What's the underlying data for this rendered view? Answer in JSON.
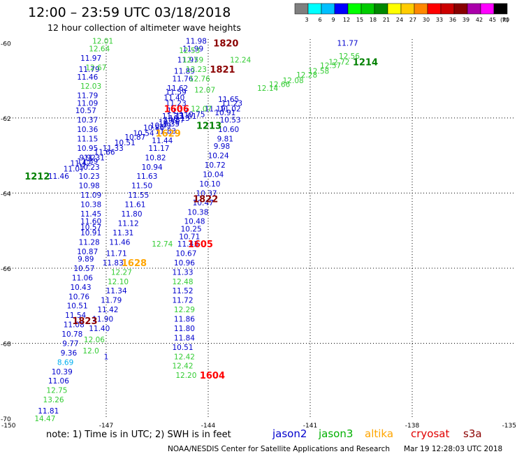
{
  "title": "12:00  – 23:59 UTC 03/18/2018",
  "subtitle": "12 hour collection of altimeter wave heights",
  "footer_note": "note: 1) Time is in UTC; 2) SWH is in feet",
  "credit": "NOAA/NESDIS Center for Satellite Applications and Research",
  "timestamp": "Mar 19 12:28:03 UTC 2018",
  "colorbar": {
    "ticks": [
      "3",
      "6",
      "9",
      "12",
      "15",
      "18",
      "21",
      "24",
      "27",
      "30",
      "33",
      "36",
      "39",
      "42",
      "45",
      "70"
    ],
    "unit": "(ft)",
    "colors": [
      "#7f7f7f",
      "#00ffff",
      "#00bfff",
      "#0000ff",
      "#00ff00",
      "#00cc00",
      "#008800",
      "#ffff00",
      "#ffcc00",
      "#ff8800",
      "#ff0000",
      "#cc0000",
      "#880000",
      "#aa00aa",
      "#ff00ff",
      "#000000"
    ]
  },
  "satellites": [
    {
      "name": "jason2",
      "color": "#0000cd"
    },
    {
      "name": "jason3",
      "color": "#00b000"
    },
    {
      "name": "altika",
      "color": "#ffa500"
    },
    {
      "name": "cryosat",
      "color": "#e00000"
    },
    {
      "name": "s3a",
      "color": "#8b0000"
    }
  ],
  "chart_data": {
    "type": "scatter",
    "xlim": [
      -150,
      -135
    ],
    "ylim": [
      -70,
      -59.9
    ],
    "x_ticks": [
      "-150",
      "-147",
      "-144",
      "-141",
      "-138",
      "-135"
    ],
    "y_ticks": [
      "-60",
      "-62",
      "-64",
      "-66",
      "-68",
      "-70"
    ],
    "grid": true,
    "series": [
      {
        "name": "jason2",
        "color": "#0000cd",
        "points": [
          [
            -144.35,
            -59.95,
            "11.98"
          ],
          [
            -144.45,
            -60.15,
            "11.99"
          ],
          [
            -144.6,
            -60.45,
            "11.97"
          ],
          [
            -144.7,
            -60.75,
            "11.89"
          ],
          [
            -144.75,
            -60.95,
            "11.76"
          ],
          [
            -144.9,
            -61.2,
            "11.62"
          ],
          [
            -144.95,
            -61.3,
            "11.59"
          ],
          [
            -145.0,
            -61.45,
            "11.40"
          ],
          [
            -144.95,
            -61.6,
            "11.23"
          ],
          [
            -144.9,
            -61.8,
            "11.19"
          ],
          [
            -145.05,
            -61.95,
            "11.23"
          ],
          [
            -145.15,
            -62.15,
            "11.35"
          ],
          [
            -145.25,
            -62.35,
            "11.83"
          ],
          [
            -145.35,
            -62.6,
            "11.44"
          ],
          [
            -145.45,
            -62.8,
            "11.17"
          ],
          [
            -145.55,
            -63.05,
            "10.82"
          ],
          [
            -145.65,
            -63.3,
            "10.94"
          ],
          [
            -145.8,
            -63.55,
            "11.63"
          ],
          [
            -145.95,
            -63.8,
            "11.50"
          ],
          [
            -146.05,
            -64.05,
            "11.55"
          ],
          [
            -146.15,
            -64.3,
            "11.61"
          ],
          [
            -146.25,
            -64.55,
            "11.80"
          ],
          [
            -146.35,
            -64.8,
            "11.12"
          ],
          [
            -146.5,
            -65.05,
            "11.31"
          ],
          [
            -146.6,
            -65.3,
            "11.46"
          ],
          [
            -146.7,
            -65.6,
            "11.71"
          ],
          [
            -146.8,
            -65.85,
            "11.83"
          ],
          [
            -146.7,
            -66.6,
            "11.34"
          ],
          [
            -146.85,
            -66.85,
            "11.79"
          ],
          [
            -146.95,
            -67.1,
            "11.42"
          ],
          [
            -147.1,
            -67.35,
            "11.90"
          ],
          [
            -147.2,
            -67.6,
            "11.40"
          ],
          [
            -147.0,
            -68.35,
            "1"
          ],
          [
            -147.45,
            -60.4,
            "11.97"
          ],
          [
            -147.5,
            -60.7,
            "11.79"
          ],
          [
            -147.55,
            -60.9,
            "11.46"
          ],
          [
            -147.55,
            -61.4,
            "11.79"
          ],
          [
            -147.55,
            -61.6,
            "11.09"
          ],
          [
            -147.6,
            -61.8,
            "10.57"
          ],
          [
            -147.55,
            -62.05,
            "10.37"
          ],
          [
            -147.55,
            -62.3,
            "10.36"
          ],
          [
            -147.55,
            -62.55,
            "11.15"
          ],
          [
            -147.55,
            -62.8,
            "10.95"
          ],
          [
            -147.55,
            -63.05,
            "9.92"
          ],
          [
            -147.5,
            -63.3,
            "10.23"
          ],
          [
            -147.5,
            -63.55,
            "10.23"
          ],
          [
            -147.5,
            -63.8,
            "10.98"
          ],
          [
            -147.45,
            -64.05,
            "11.09"
          ],
          [
            -147.45,
            -64.3,
            "10.38"
          ],
          [
            -147.45,
            -64.55,
            "11.45"
          ],
          [
            -147.45,
            -64.75,
            "11.60"
          ],
          [
            -147.45,
            -64.9,
            "10.57"
          ],
          [
            -147.45,
            -65.05,
            "10.91"
          ],
          [
            -147.5,
            -65.3,
            "11.28"
          ],
          [
            -147.55,
            -65.55,
            "10.87"
          ],
          [
            -147.6,
            -65.75,
            "9.89"
          ],
          [
            -147.65,
            -66.0,
            "10.57"
          ],
          [
            -147.7,
            -66.25,
            "11.06"
          ],
          [
            -147.75,
            -66.5,
            "10.43"
          ],
          [
            -147.8,
            -66.75,
            "10.76"
          ],
          [
            -147.85,
            -67.0,
            "10.51"
          ],
          [
            -147.9,
            -67.25,
            "11.54"
          ],
          [
            -147.95,
            -67.5,
            "11.08"
          ],
          [
            -148.0,
            -67.75,
            "10.78"
          ],
          [
            -148.05,
            -68.0,
            "9.77"
          ],
          [
            -148.1,
            -68.25,
            "9.36"
          ],
          [
            -148.3,
            -68.75,
            "10.39"
          ],
          [
            -148.4,
            -69.0,
            "11.06"
          ],
          [
            -148.7,
            -69.8,
            "11.81"
          ],
          [
            -148.4,
            -63.55,
            "11.46"
          ],
          [
            -147.95,
            -63.35,
            "11.07"
          ],
          [
            -147.75,
            -63.2,
            "11.42"
          ],
          [
            -147.55,
            -63.15,
            "11.39"
          ],
          [
            -147.35,
            -63.05,
            "11.31"
          ],
          [
            -147.05,
            -62.9,
            "11.66"
          ],
          [
            -146.8,
            -62.8,
            "11.33"
          ],
          [
            -146.45,
            -62.65,
            "10.51"
          ],
          [
            -146.15,
            -62.5,
            "10.87"
          ],
          [
            -145.9,
            -62.4,
            "10.54"
          ],
          [
            -145.6,
            -62.25,
            "10.86"
          ],
          [
            -145.4,
            -62.2,
            "10.49"
          ],
          [
            -145.15,
            -62.1,
            "10.76"
          ],
          [
            -145.0,
            -62.05,
            "10.87"
          ],
          [
            -144.85,
            -62.0,
            "10.13"
          ],
          [
            -144.65,
            -61.95,
            "11.01"
          ],
          [
            -144.4,
            -61.9,
            "10.75"
          ],
          [
            -143.8,
            -61.75,
            "11.19"
          ],
          [
            -143.5,
            -61.85,
            "10.91"
          ],
          [
            -143.35,
            -61.75,
            "11.02"
          ],
          [
            -143.3,
            -61.6,
            "11.23"
          ],
          [
            -143.4,
            -61.5,
            "11.65"
          ],
          [
            -143.35,
            -62.05,
            "10.53"
          ],
          [
            -143.4,
            -62.3,
            "10.60"
          ],
          [
            -143.5,
            -62.55,
            "9.81"
          ],
          [
            -143.6,
            -62.75,
            "9.98"
          ],
          [
            -143.7,
            -63.0,
            "10.24"
          ],
          [
            -143.8,
            -63.25,
            "10.72"
          ],
          [
            -143.85,
            -63.5,
            "10.04"
          ],
          [
            -143.95,
            -63.75,
            "10.10"
          ],
          [
            -144.05,
            -64.0,
            "10.37"
          ],
          [
            -144.15,
            -64.25,
            "10.47"
          ],
          [
            -144.3,
            -64.5,
            "10.38"
          ],
          [
            -144.4,
            -64.75,
            "10.48"
          ],
          [
            -144.5,
            -64.95,
            "10.25"
          ],
          [
            -144.55,
            -65.15,
            "10.71"
          ],
          [
            -144.6,
            -65.35,
            "11.43"
          ],
          [
            -144.65,
            -65.6,
            "10.67"
          ],
          [
            -144.7,
            -65.85,
            "10.96"
          ],
          [
            -144.75,
            -66.1,
            "11.33"
          ],
          [
            -144.75,
            -66.6,
            "11.52"
          ],
          [
            -144.75,
            -66.85,
            "11.72"
          ],
          [
            -144.7,
            -67.35,
            "11.86"
          ],
          [
            -144.7,
            -67.6,
            "11.80"
          ],
          [
            -144.7,
            -67.85,
            "11.84"
          ],
          [
            -144.75,
            -68.1,
            "10.51"
          ],
          [
            -139.9,
            -60.0,
            "11.77"
          ]
        ]
      },
      {
        "name": "jason3",
        "color": "#33cc33",
        "points": [
          [
            -147.1,
            -59.95,
            "12.01"
          ],
          [
            -147.2,
            -60.15,
            "12.64"
          ],
          [
            -147.3,
            -60.65,
            "12.67"
          ],
          [
            -147.45,
            -61.15,
            "12.03"
          ],
          [
            -144.55,
            -60.2,
            "12.53"
          ],
          [
            -144.45,
            -60.45,
            "12.59"
          ],
          [
            -144.35,
            -60.7,
            "13.23"
          ],
          [
            -144.25,
            -60.95,
            "12.76"
          ],
          [
            -144.1,
            -61.25,
            "12.07"
          ],
          [
            -144.2,
            -61.75,
            "12.07"
          ],
          [
            -143.05,
            -60.45,
            "12.24"
          ],
          [
            -142.25,
            -61.2,
            "12.14"
          ],
          [
            -141.9,
            -61.1,
            "12.66"
          ],
          [
            -141.5,
            -61.0,
            "12.08"
          ],
          [
            -141.1,
            -60.85,
            "12.28"
          ],
          [
            -140.75,
            -60.75,
            "12.58"
          ],
          [
            -140.4,
            -60.6,
            "12.57"
          ],
          [
            -140.15,
            -60.5,
            "12.72"
          ],
          [
            -139.85,
            -60.35,
            "12.56"
          ],
          [
            -145.35,
            -65.35,
            "12.74"
          ],
          [
            -144.75,
            -66.35,
            "12.48"
          ],
          [
            -144.7,
            -67.1,
            "12.29"
          ],
          [
            -144.7,
            -68.35,
            "12.42"
          ],
          [
            -144.75,
            -68.6,
            "12.42"
          ],
          [
            -144.65,
            -68.85,
            "12.20"
          ],
          [
            -148.45,
            -69.25,
            "12.75"
          ],
          [
            -148.55,
            -69.5,
            "13.26"
          ],
          [
            -148.8,
            -70.0,
            "14.47"
          ],
          [
            -146.55,
            -66.1,
            "12.27"
          ],
          [
            -146.65,
            -66.35,
            "12.10"
          ],
          [
            -147.35,
            -67.9,
            "12.06"
          ],
          [
            -147.45,
            -68.2,
            "12.0"
          ]
        ]
      },
      {
        "name": "jason3_cyan",
        "color": "#00aeef",
        "points": [
          [
            -148.2,
            -68.5,
            "8.69"
          ]
        ]
      },
      {
        "name": "passes",
        "color": "#000000",
        "labels": [
          {
            "x": -143.85,
            "y": -60.0,
            "text": "1820",
            "color": "#8b0000"
          },
          {
            "x": -143.95,
            "y": -60.7,
            "text": "1821",
            "color": "#8b0000"
          },
          {
            "x": -139.75,
            "y": -60.5,
            "text": "1214",
            "color": "#008000"
          },
          {
            "x": -145.3,
            "y": -61.75,
            "text": "1606",
            "color": "#ff0000"
          },
          {
            "x": -144.35,
            "y": -62.2,
            "text": "1213",
            "color": "#008000"
          },
          {
            "x": -145.55,
            "y": -62.4,
            "text": "1629",
            "color": "#ffa500"
          },
          {
            "x": -149.4,
            "y": -63.55,
            "text": "1212",
            "color": "#008000"
          },
          {
            "x": -144.45,
            "y": -64.15,
            "text": "1822",
            "color": "#8b0000"
          },
          {
            "x": -144.6,
            "y": -65.35,
            "text": "1605",
            "color": "#ff0000"
          },
          {
            "x": -146.55,
            "y": -65.85,
            "text": "1628",
            "color": "#ffa500"
          },
          {
            "x": -148.0,
            "y": -67.4,
            "text": "1823",
            "color": "#8b0000"
          },
          {
            "x": -144.25,
            "y": -68.85,
            "text": "1604",
            "color": "#ff0000"
          }
        ]
      }
    ]
  }
}
